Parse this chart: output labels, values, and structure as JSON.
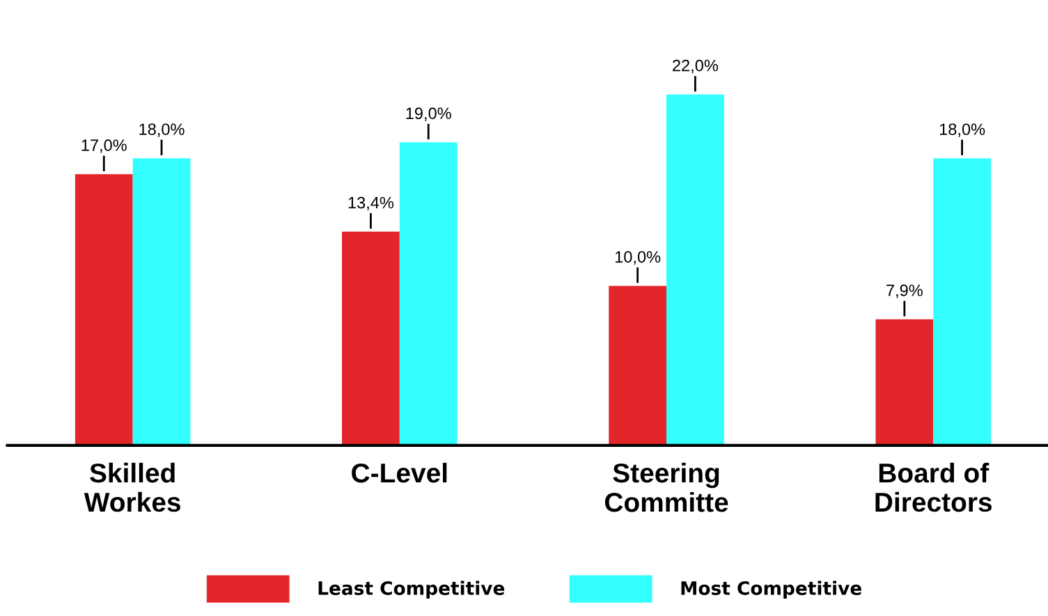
{
  "chart_data": {
    "type": "bar",
    "categories": [
      "Skilled\nWorkes",
      "C-Level",
      "Steering\nCommitte",
      "Board of\nDirectors"
    ],
    "series": [
      {
        "name": "Least Competitive",
        "color": "#e3262a",
        "values": [
          17.0,
          13.4,
          10.0,
          7.9
        ],
        "value_labels": [
          "17,0%",
          "13,4%",
          "10,0%",
          "7,9%"
        ]
      },
      {
        "name": "Most Competitive",
        "color": "#33ffff",
        "values": [
          18.0,
          19.0,
          22.0,
          18.0
        ],
        "value_labels": [
          "18,0%",
          "19,0%",
          "22,0%",
          "18,0%"
        ]
      }
    ],
    "legend": "bottom",
    "grid": false,
    "tick_labels": "x"
  }
}
